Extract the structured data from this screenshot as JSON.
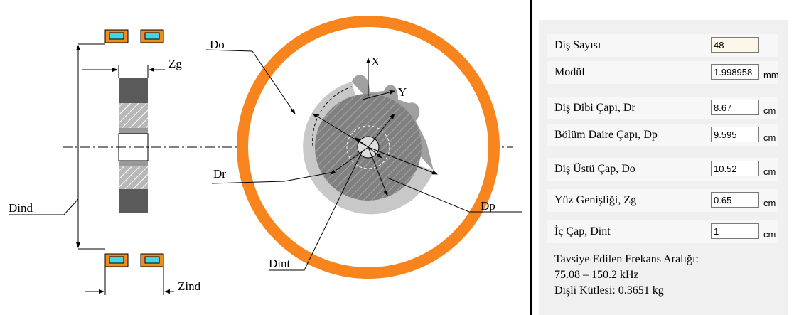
{
  "drawing": {
    "labels": {
      "do": "Do",
      "x": "X",
      "y": "Y",
      "zg": "Zg",
      "dr": "Dr",
      "dp": "Dp",
      "dind": "Dind",
      "dint": "Dint",
      "zind": "Zind"
    }
  },
  "form": {
    "rows": [
      {
        "label": "Diş Sayısı",
        "value": "48"
      },
      {
        "label": "Modül",
        "value": "1.998958",
        "unit": "mm"
      },
      {
        "label": "Diş Dibi Çapı, Dr",
        "value": "8.67",
        "unit": "cm"
      },
      {
        "label": "Bölüm Daire Çapı, Dp",
        "value": "9.595",
        "unit": "cm"
      },
      {
        "label": "Diş Üstü Çap, Do",
        "value": "10.52",
        "unit": "cm"
      },
      {
        "label": "Yüz Genişliği, Zg",
        "value": "0.65",
        "unit": "cm"
      },
      {
        "label": "İç Çap, Dint",
        "value": "1",
        "unit": "cm"
      }
    ]
  },
  "info": {
    "freq_title": "Tavsiye Edilen Frekans Aralığı:",
    "freq_range": "75.08 – 150.2 kHz",
    "mass": "Dişli Kütlesi: 0.3651 kg"
  }
}
